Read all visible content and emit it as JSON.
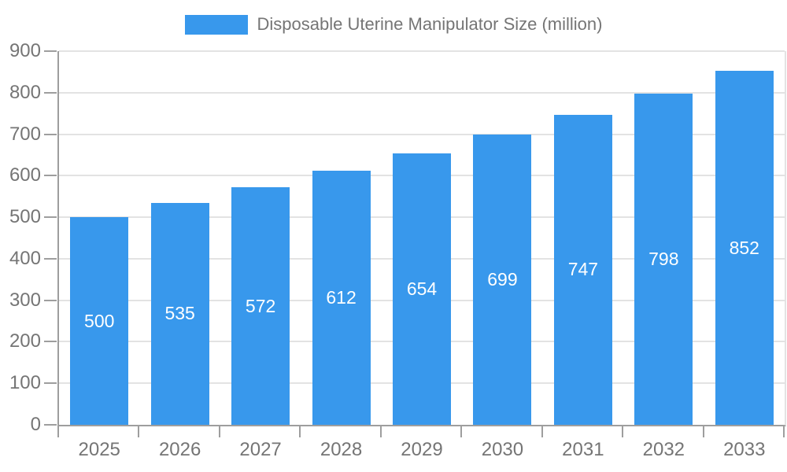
{
  "legend": {
    "label": "Disposable Uterine Manipulator Size (million)"
  },
  "chart_data": {
    "type": "bar",
    "title": "Disposable Uterine Manipulator Size (million)",
    "categories": [
      "2025",
      "2026",
      "2027",
      "2028",
      "2029",
      "2030",
      "2031",
      "2032",
      "2033"
    ],
    "values": [
      500,
      535,
      572,
      612,
      654,
      699,
      747,
      798,
      852
    ],
    "xlabel": "",
    "ylabel": "",
    "ylim": [
      0,
      900
    ],
    "ytick_step": 100,
    "ytick_labels": [
      "0",
      "100",
      "200",
      "300",
      "400",
      "500",
      "600",
      "700",
      "800",
      "900"
    ],
    "grid": true,
    "legend_position": "top-center",
    "colors": {
      "bar": "#3898ec",
      "value_label": "#ffffff",
      "axis": "#9e9e9e",
      "grid": "#e3e3e3",
      "tick_label": "#757575"
    }
  }
}
